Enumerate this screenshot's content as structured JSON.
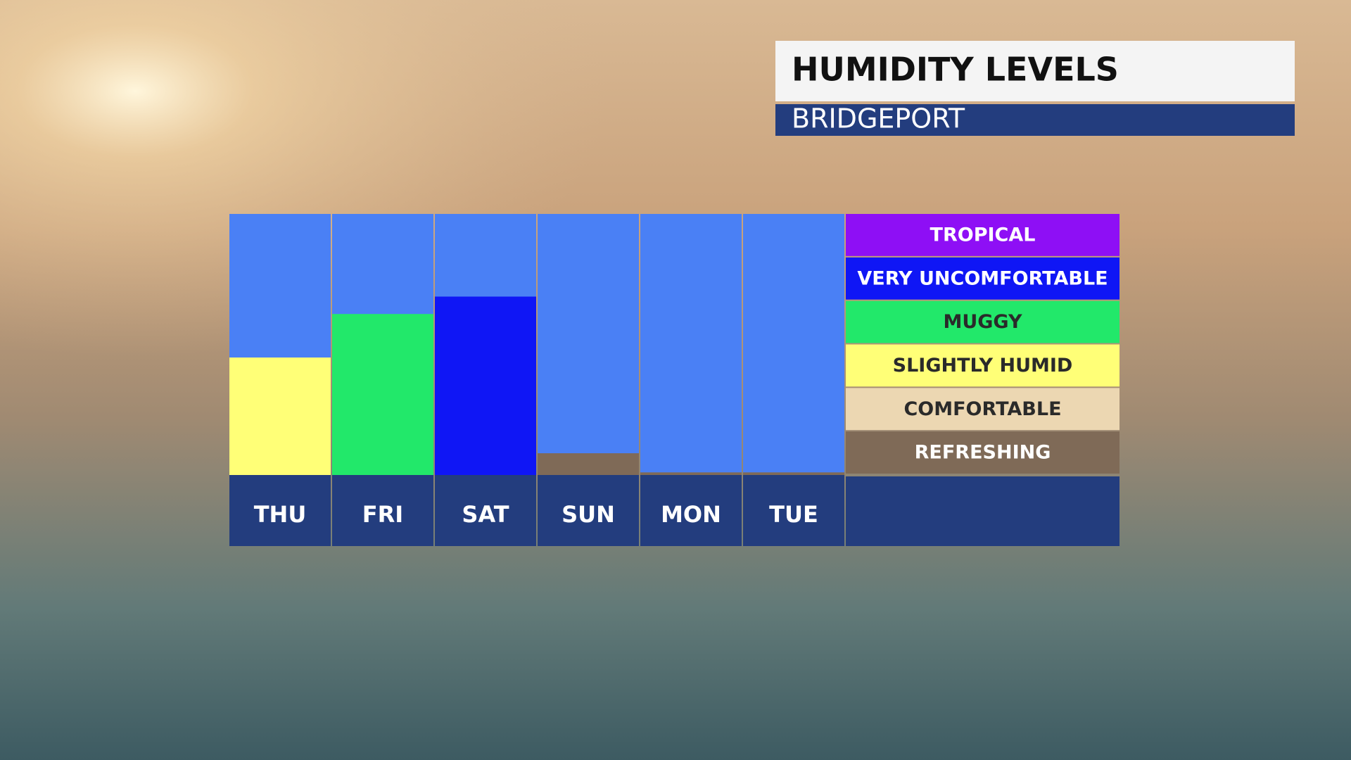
{
  "chart_data": {
    "type": "bar",
    "title": "HUMIDITY LEVELS",
    "subtitle": "BRIDGEPORT",
    "categories": [
      "THU",
      "FRI",
      "SAT",
      "SUN",
      "MON",
      "TUE"
    ],
    "values": [
      2.7,
      3.7,
      4.1,
      0.5,
      0.06,
      0.06
    ],
    "colors": [
      "#ffff77",
      "#22e86a",
      "#0f16f5",
      "#7f6a57",
      "#7f6a57",
      "#7f6a57"
    ],
    "ylim": [
      0,
      6
    ],
    "legend": {
      "labels": [
        "TROPICAL",
        "VERY UNCOMFORTABLE",
        "MUGGY",
        "SLIGHTLY HUMID",
        "COMFORTABLE",
        "REFRESHING"
      ],
      "colors": [
        "#8e0ff5",
        "#0f16f5",
        "#22e86a",
        "#ffff77",
        "#ecd7b2",
        "#7f6a57"
      ]
    }
  }
}
